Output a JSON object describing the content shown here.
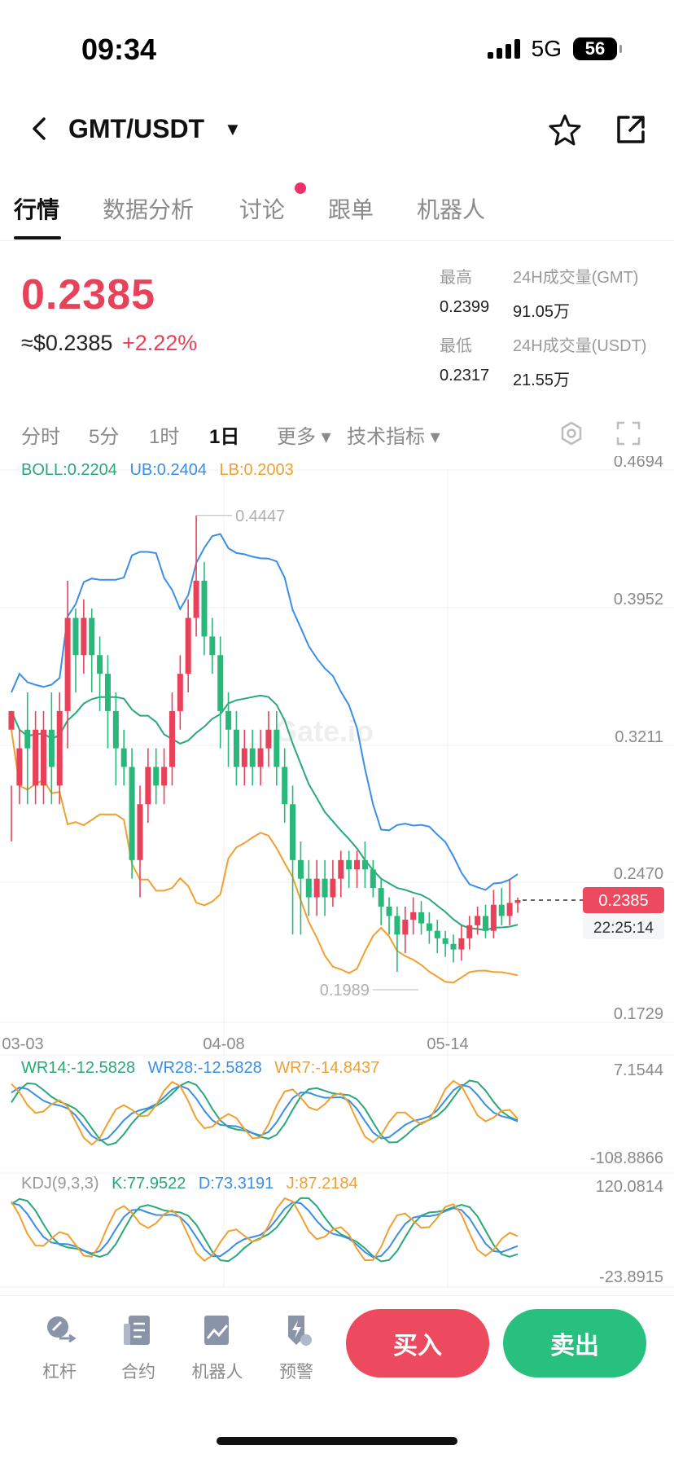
{
  "status": {
    "time": "09:34",
    "network": "5G",
    "battery": "56"
  },
  "header": {
    "pair": "GMT/USDT"
  },
  "tabs": [
    {
      "label": "行情",
      "active": true
    },
    {
      "label": "数据分析"
    },
    {
      "label": "讨论",
      "badge": true
    },
    {
      "label": "跟单"
    },
    {
      "label": "机器人"
    }
  ],
  "ticker": {
    "last_price": "0.2385",
    "usd_price": "≈$0.2385",
    "change": "+2.22%",
    "high_label": "最高",
    "high": "0.2399",
    "low_label": "最低",
    "low": "0.2317",
    "vol_gmt_label": "24H成交量(GMT)",
    "vol_gmt": "91.05万",
    "vol_usdt_label": "24H成交量(USDT)",
    "vol_usdt": "21.55万"
  },
  "intervals": {
    "items": [
      "分时",
      "5分",
      "1时",
      "1日"
    ],
    "active": "1日",
    "more": "更多",
    "indicators": "技术指标"
  },
  "watermark": "Gate.io",
  "chart_data": {
    "type": "candlestick",
    "boll": {
      "label": "BOLL:0.2204",
      "ub": "UB:0.2404",
      "lb": "LB:0.2003"
    },
    "y_ticks": [
      "0.4694",
      "0.3952",
      "0.3211",
      "0.2470",
      "0.1729"
    ],
    "x_ticks": [
      "03-03",
      "04-08",
      "05-14"
    ],
    "max_label": "0.4447",
    "min_label": "0.1989",
    "current_price_tag": "0.2385",
    "countdown": "22:25:14",
    "ylim": [
      0.1729,
      0.4694
    ],
    "candles": [
      [
        0.33,
        0.34,
        0.3,
        0.27
      ],
      [
        0.3,
        0.32,
        0.33,
        0.29
      ],
      [
        0.33,
        0.32,
        0.35,
        0.29
      ],
      [
        0.3,
        0.33,
        0.34,
        0.29
      ],
      [
        0.3,
        0.33,
        0.34,
        0.29
      ],
      [
        0.33,
        0.31,
        0.35,
        0.29
      ],
      [
        0.3,
        0.34,
        0.35,
        0.29
      ],
      [
        0.34,
        0.39,
        0.41,
        0.32
      ],
      [
        0.39,
        0.37,
        0.395,
        0.35
      ],
      [
        0.37,
        0.39,
        0.4,
        0.36
      ],
      [
        0.39,
        0.37,
        0.395,
        0.35
      ],
      [
        0.37,
        0.36,
        0.38,
        0.34
      ],
      [
        0.36,
        0.34,
        0.37,
        0.32
      ],
      [
        0.34,
        0.32,
        0.35,
        0.3
      ],
      [
        0.32,
        0.31,
        0.33,
        0.3
      ],
      [
        0.31,
        0.26,
        0.32,
        0.25
      ],
      [
        0.26,
        0.29,
        0.3,
        0.24
      ],
      [
        0.29,
        0.31,
        0.32,
        0.28
      ],
      [
        0.31,
        0.3,
        0.32,
        0.29
      ],
      [
        0.3,
        0.31,
        0.32,
        0.29
      ],
      [
        0.31,
        0.34,
        0.35,
        0.3
      ],
      [
        0.34,
        0.36,
        0.37,
        0.33
      ],
      [
        0.36,
        0.39,
        0.4,
        0.35
      ],
      [
        0.39,
        0.41,
        0.445,
        0.38
      ],
      [
        0.41,
        0.38,
        0.42,
        0.37
      ],
      [
        0.38,
        0.37,
        0.39,
        0.36
      ],
      [
        0.37,
        0.34,
        0.38,
        0.32
      ],
      [
        0.34,
        0.33,
        0.35,
        0.31
      ],
      [
        0.33,
        0.31,
        0.34,
        0.3
      ],
      [
        0.31,
        0.32,
        0.33,
        0.3
      ],
      [
        0.32,
        0.31,
        0.33,
        0.3
      ],
      [
        0.31,
        0.32,
        0.33,
        0.3
      ],
      [
        0.32,
        0.33,
        0.34,
        0.31
      ],
      [
        0.33,
        0.31,
        0.34,
        0.3
      ],
      [
        0.31,
        0.29,
        0.32,
        0.28
      ],
      [
        0.29,
        0.26,
        0.3,
        0.22
      ],
      [
        0.26,
        0.25,
        0.27,
        0.22
      ],
      [
        0.25,
        0.24,
        0.26,
        0.23
      ],
      [
        0.24,
        0.25,
        0.26,
        0.23
      ],
      [
        0.25,
        0.24,
        0.26,
        0.23
      ],
      [
        0.24,
        0.25,
        0.26,
        0.235
      ],
      [
        0.25,
        0.26,
        0.265,
        0.24
      ],
      [
        0.26,
        0.255,
        0.265,
        0.245
      ],
      [
        0.255,
        0.26,
        0.265,
        0.245
      ],
      [
        0.26,
        0.255,
        0.27,
        0.245
      ],
      [
        0.255,
        0.245,
        0.26,
        0.24
      ],
      [
        0.245,
        0.235,
        0.25,
        0.225
      ],
      [
        0.235,
        0.23,
        0.24,
        0.22
      ],
      [
        0.23,
        0.22,
        0.235,
        0.2
      ],
      [
        0.22,
        0.228,
        0.235,
        0.21
      ],
      [
        0.228,
        0.232,
        0.24,
        0.22
      ],
      [
        0.232,
        0.226,
        0.238,
        0.22
      ],
      [
        0.226,
        0.222,
        0.232,
        0.215
      ],
      [
        0.222,
        0.218,
        0.228,
        0.21
      ],
      [
        0.218,
        0.215,
        0.222,
        0.208
      ],
      [
        0.215,
        0.212,
        0.22,
        0.205
      ],
      [
        0.212,
        0.218,
        0.225,
        0.206
      ],
      [
        0.218,
        0.225,
        0.23,
        0.212
      ],
      [
        0.225,
        0.23,
        0.235,
        0.22
      ],
      [
        0.23,
        0.222,
        0.236,
        0.218
      ],
      [
        0.222,
        0.236,
        0.244,
        0.218
      ],
      [
        0.236,
        0.23,
        0.245,
        0.225
      ],
      [
        0.23,
        0.237,
        0.25,
        0.225
      ],
      [
        0.237,
        0.2385,
        0.2399,
        0.2317
      ]
    ],
    "wr": {
      "legend": "WR14:-12.5828",
      "wr28": "WR28:-12.5828",
      "wr7": "WR7:-14.8437",
      "max": "7.1544",
      "min": "-108.8866"
    },
    "kdj": {
      "legend": "KDJ(9,3,3)",
      "k": "K:77.9522",
      "d": "D:73.3191",
      "j": "J:87.2184",
      "max": "120.0814",
      "min": "-23.8915"
    }
  },
  "bottom": {
    "leverage": "杠杆",
    "contract": "合约",
    "robot": "机器人",
    "alert": "预警",
    "buy": "买入",
    "sell": "卖出"
  }
}
